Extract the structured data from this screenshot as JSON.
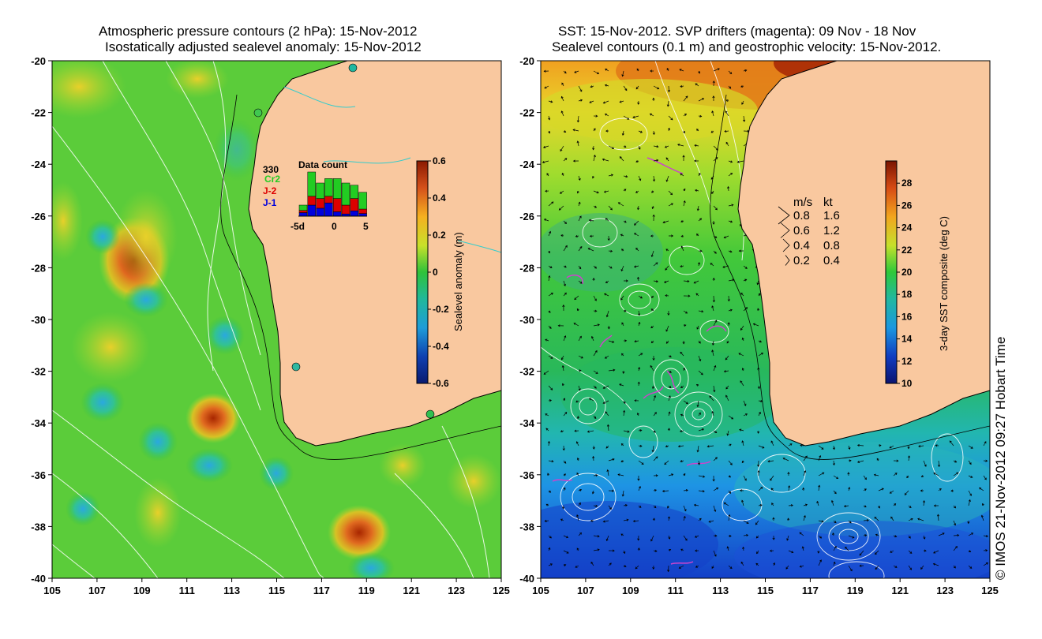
{
  "left_panel": {
    "title_line1": "Atmospheric pressure contours (2 hPa): 15-Nov-2012",
    "title_line2": "Isostatically adjusted sealevel anomaly: 15-Nov-2012",
    "lat_ticks": [
      "-20",
      "-22",
      "-24",
      "-26",
      "-28",
      "-30",
      "-32",
      "-34",
      "-36",
      "-38",
      "-40"
    ],
    "lon_ticks": [
      "105",
      "107",
      "109",
      "111",
      "113",
      "115",
      "117",
      "119",
      "121",
      "123",
      "125"
    ],
    "colorbar": {
      "label": "Sealevel anomaly (m)",
      "ticks": [
        "0.6",
        "0.4",
        "0.2",
        "0",
        "-0.2",
        "-0.4",
        "-0.6"
      ]
    },
    "data_count": {
      "title": "Data count",
      "max_label": "330",
      "missions": [
        {
          "name": "Cr2",
          "color": "#22cc22"
        },
        {
          "name": "J-2",
          "color": "#dd0000"
        },
        {
          "name": "J-1",
          "color": "#0000dd"
        }
      ],
      "x_ticks": [
        "-5d",
        "0",
        "5"
      ],
      "bars": [
        {
          "blue": 0.08,
          "red": 0.05,
          "green": 0.12
        },
        {
          "blue": 0.25,
          "red": 0.2,
          "green": 0.55
        },
        {
          "blue": 0.18,
          "red": 0.22,
          "green": 0.35
        },
        {
          "blue": 0.3,
          "red": 0.15,
          "green": 0.4
        },
        {
          "blue": 0.1,
          "red": 0.3,
          "green": 0.45
        },
        {
          "blue": 0.05,
          "red": 0.2,
          "green": 0.5
        },
        {
          "blue": 0.12,
          "red": 0.28,
          "green": 0.3
        },
        {
          "blue": 0.06,
          "red": 0.1,
          "green": 0.38
        }
      ]
    }
  },
  "right_panel": {
    "title_line1": "SST: 15-Nov-2012. SVP drifters (magenta): 09 Nov - 18 Nov",
    "title_line2": "Sealevel contours (0.1 m) and geostrophic velocity: 15-Nov-2012.",
    "lat_ticks": [
      "-20",
      "-22",
      "-24",
      "-26",
      "-28",
      "-30",
      "-32",
      "-34",
      "-36",
      "-38",
      "-40"
    ],
    "lon_ticks": [
      "105",
      "107",
      "109",
      "111",
      "113",
      "115",
      "117",
      "119",
      "121",
      "123",
      "125"
    ],
    "colorbar": {
      "label": "3-day SST composite (deg C)",
      "ticks": [
        "28",
        "26",
        "24",
        "22",
        "20",
        "18",
        "16",
        "14",
        "12",
        "10"
      ]
    },
    "velocity_legend": {
      "header_ms": "m/s",
      "header_kt": "kt",
      "rows": [
        {
          "ms": "0.8",
          "kt": "1.6"
        },
        {
          "ms": "0.6",
          "kt": "1.2"
        },
        {
          "ms": "0.4",
          "kt": "0.8"
        },
        {
          "ms": "0.2",
          "kt": "0.4"
        }
      ]
    }
  },
  "copyright": "© IMOS 21-Nov-2012 09:27 Hobart Time",
  "colors": {
    "land": "#f9c89f",
    "coast": "#000000",
    "drifter": "#cc44cc",
    "contour": "#ffffff",
    "river": "#33cccc"
  }
}
